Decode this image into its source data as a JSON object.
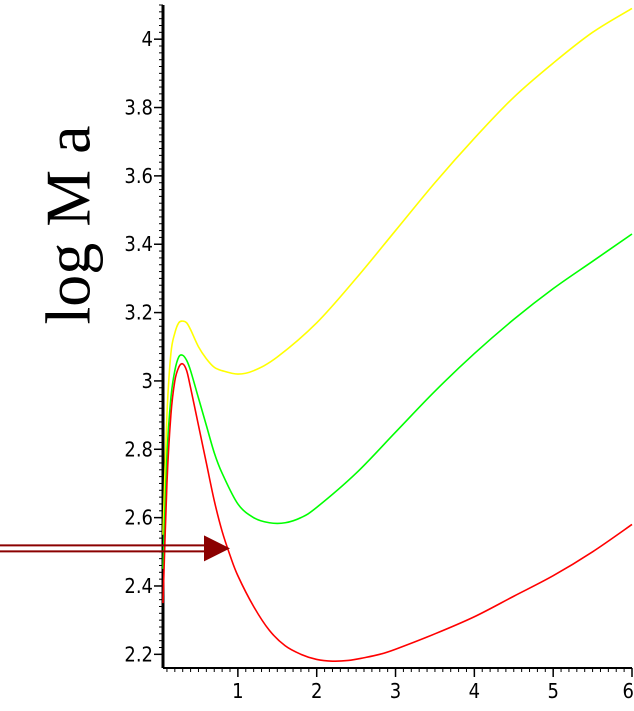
{
  "chart_data": {
    "type": "line",
    "title": "",
    "xlabel": "",
    "ylabel": "log  M a",
    "xlim": [
      0.05,
      6
    ],
    "ylim": [
      2.16,
      4.1
    ],
    "xticks": [
      1,
      2,
      3,
      4,
      5,
      6
    ],
    "yticks": [
      2.2,
      2.4,
      2.6,
      2.8,
      3,
      3.2,
      3.4,
      3.6,
      3.8,
      4
    ],
    "grid": false,
    "legend": "none",
    "series": [
      {
        "color": "#ffff00",
        "x": [
          0.05,
          0.1,
          0.15,
          0.2,
          0.25,
          0.3,
          0.35,
          0.4,
          0.5,
          0.6,
          0.7,
          0.8,
          1.0,
          1.2,
          1.5,
          2.0,
          2.5,
          3.0,
          3.5,
          4.0,
          4.5,
          5.0,
          5.5,
          6.0
        ],
        "y": [
          2.55,
          2.9,
          3.08,
          3.14,
          3.17,
          3.175,
          3.17,
          3.15,
          3.1,
          3.065,
          3.04,
          3.03,
          3.02,
          3.03,
          3.07,
          3.17,
          3.3,
          3.44,
          3.58,
          3.71,
          3.83,
          3.93,
          4.02,
          4.09
        ]
      },
      {
        "color": "#00ff00",
        "x": [
          0.05,
          0.1,
          0.15,
          0.2,
          0.25,
          0.3,
          0.35,
          0.4,
          0.5,
          0.6,
          0.7,
          0.8,
          1.0,
          1.2,
          1.4,
          1.6,
          1.8,
          2.0,
          2.5,
          3.0,
          3.5,
          4.0,
          4.5,
          5.0,
          5.5,
          6.0
        ],
        "y": [
          2.45,
          2.78,
          2.95,
          3.03,
          3.07,
          3.075,
          3.06,
          3.03,
          2.95,
          2.87,
          2.79,
          2.73,
          2.64,
          2.6,
          2.585,
          2.585,
          2.6,
          2.63,
          2.73,
          2.85,
          2.97,
          3.08,
          3.18,
          3.27,
          3.35,
          3.43
        ]
      },
      {
        "color": "#ff0000",
        "x": [
          0.05,
          0.1,
          0.15,
          0.2,
          0.25,
          0.3,
          0.35,
          0.4,
          0.5,
          0.6,
          0.7,
          0.8,
          0.9,
          1.0,
          1.2,
          1.4,
          1.6,
          1.8,
          2.0,
          2.2,
          2.4,
          2.6,
          2.8,
          3.0,
          3.5,
          4.0,
          4.5,
          5.0,
          5.5,
          6.0
        ],
        "y": [
          2.35,
          2.7,
          2.9,
          3.0,
          3.04,
          3.05,
          3.03,
          2.98,
          2.87,
          2.76,
          2.65,
          2.56,
          2.49,
          2.43,
          2.34,
          2.27,
          2.225,
          2.2,
          2.185,
          2.18,
          2.182,
          2.19,
          2.2,
          2.215,
          2.26,
          2.31,
          2.37,
          2.43,
          2.5,
          2.58
        ]
      }
    ],
    "annotation": {
      "type": "arrow",
      "color": "#8b0000",
      "from": [
        -2.15,
        2.51
      ],
      "to": [
        0.9,
        2.51
      ]
    }
  }
}
